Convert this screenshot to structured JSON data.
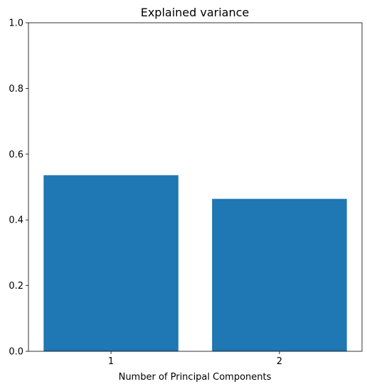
{
  "chart_data": {
    "type": "bar",
    "title": "Explained variance",
    "xlabel": "Number of Principal Components",
    "ylabel": "",
    "categories": [
      "1",
      "2"
    ],
    "values": [
      0.536,
      0.464
    ],
    "ylim": [
      0,
      1.0
    ],
    "yticks": [
      "0.0",
      "0.2",
      "0.4",
      "0.6",
      "0.8",
      "1.0"
    ],
    "bar_color": "#1f77b4",
    "grid": false,
    "legend": "none"
  }
}
